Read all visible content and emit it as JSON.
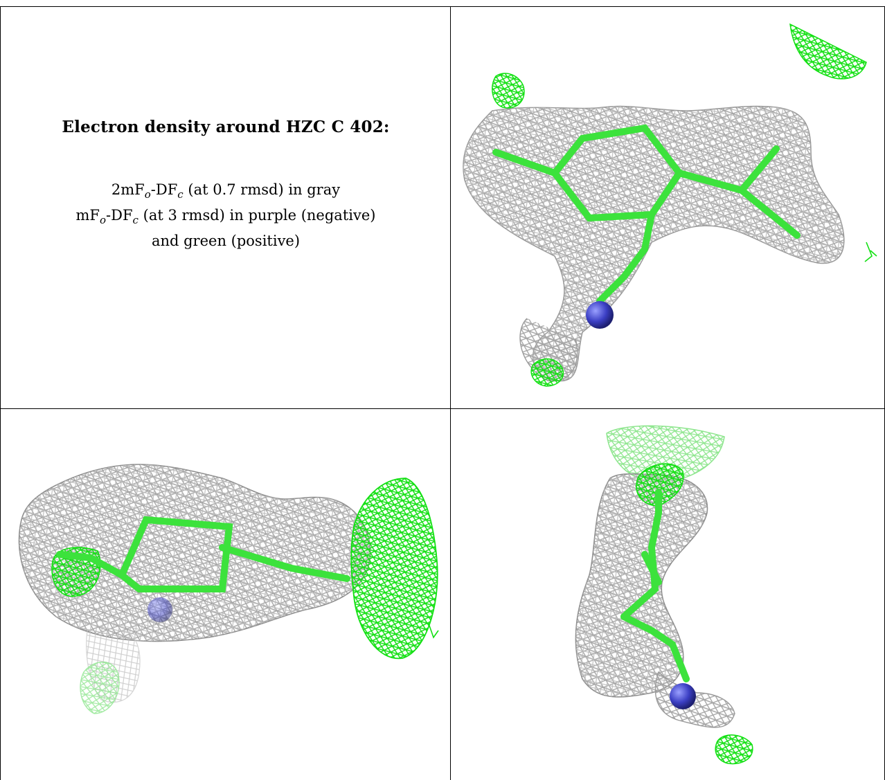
{
  "legend": {
    "title": "Electron density around HZC C 402:",
    "map1_prefix": "2mF",
    "map1_sub_o": "o",
    "map1_mid": "-DF",
    "map1_sub_c": "c",
    "map1_suffix": " (at 0.7 rmsd) in gray",
    "map2_prefix": "mF",
    "map2_sub_o": "o",
    "map2_mid": "-DF",
    "map2_sub_c": "c",
    "map2_suffix": " (at 3 rmsd) in purple (negative)",
    "map3_text": "and green (positive)"
  },
  "colors": {
    "density_mesh": "#a7a7a7",
    "positive_mesh": "#12e012",
    "ligand_bonds": "#3ce23c",
    "nitrogen_atom": "#3b3fc4",
    "grid_lines": "#000000"
  },
  "panels": [
    {
      "name": "top-right-view"
    },
    {
      "name": "bottom-left-view"
    },
    {
      "name": "bottom-right-view"
    }
  ]
}
